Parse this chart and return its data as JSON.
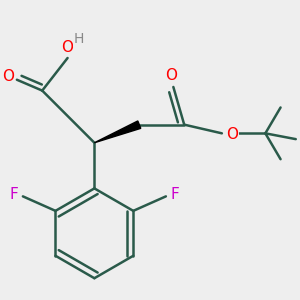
{
  "bg_color": "#EEEEEE",
  "bond_color": "#2a5a4a",
  "bond_width": 1.8,
  "wedge_color": "#000000",
  "oxygen_color": "#FF0000",
  "fluorine_color": "#CC00CC",
  "hydrogen_color": "#888888",
  "figsize": [
    3.0,
    3.0
  ],
  "dpi": 100,
  "xlim": [
    -1.2,
    2.8
  ],
  "ylim": [
    -2.4,
    1.6
  ]
}
